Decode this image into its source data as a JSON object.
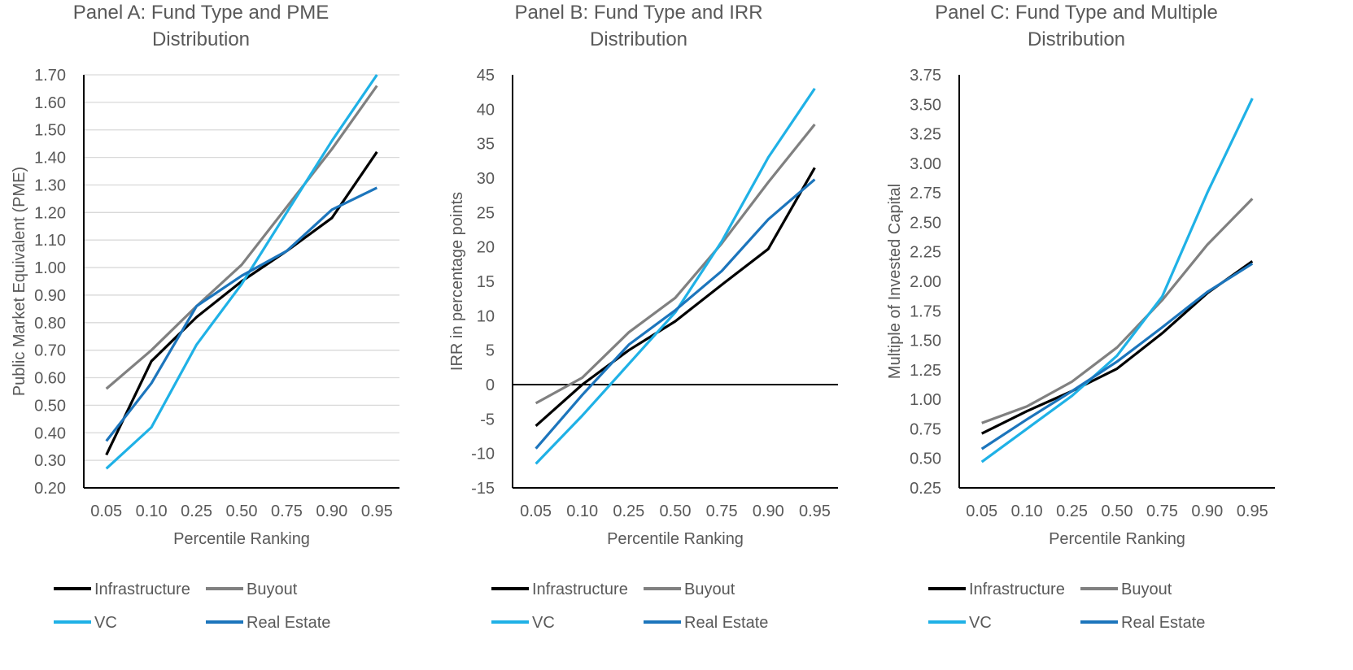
{
  "colors": {
    "Infrastructure": "#000000",
    "Buyout": "#808080",
    "VC": "#1FB1E6",
    "Real Estate": "#1C75BC",
    "grid": "#D9D9D9",
    "axis": "#000000"
  },
  "chart_data": [
    {
      "type": "line",
      "title": [
        "Panel A: Fund Type and PME",
        "Distribution"
      ],
      "xlabel": "Percentile Ranking",
      "ylabel": "Public Market Equivalent (PME)",
      "categories": [
        "0.05",
        "0.10",
        "0.25",
        "0.50",
        "0.75",
        "0.90",
        "0.95"
      ],
      "ylim": [
        0.2,
        1.7
      ],
      "ystep": 0.1,
      "ydecimals": 2,
      "grid": true,
      "legend": "bottom",
      "series": [
        {
          "name": "Infrastructure",
          "values": [
            0.32,
            0.66,
            0.82,
            0.95,
            1.06,
            1.18,
            1.42
          ]
        },
        {
          "name": "Buyout",
          "values": [
            0.56,
            0.7,
            0.86,
            1.01,
            1.22,
            1.43,
            1.66
          ]
        },
        {
          "name": "VC",
          "values": [
            0.27,
            0.42,
            0.72,
            0.94,
            1.2,
            1.46,
            1.7
          ]
        },
        {
          "name": "Real Estate",
          "values": [
            0.37,
            0.58,
            0.86,
            0.97,
            1.06,
            1.21,
            1.29
          ]
        }
      ]
    },
    {
      "type": "line",
      "title": [
        "Panel B: Fund Type and IRR",
        "Distribution"
      ],
      "xlabel": "Percentile Ranking",
      "ylabel": "IRR in percentage points",
      "categories": [
        "0.05",
        "0.10",
        "0.25",
        "0.50",
        "0.75",
        "0.90",
        "0.95"
      ],
      "ylim": [
        -15,
        45
      ],
      "ystep": 5,
      "ydecimals": 0,
      "grid": false,
      "zero_line": true,
      "legend": "bottom",
      "series": [
        {
          "name": "Infrastructure",
          "values": [
            -6.0,
            0.0,
            5.0,
            9.2,
            14.5,
            19.7,
            31.5
          ]
        },
        {
          "name": "Buyout",
          "values": [
            -2.7,
            1.0,
            7.6,
            12.6,
            20.5,
            29.4,
            37.8
          ]
        },
        {
          "name": "VC",
          "values": [
            -11.5,
            -4.5,
            3.0,
            10.5,
            20.8,
            33.0,
            43.0
          ]
        },
        {
          "name": "Real Estate",
          "values": [
            -9.3,
            -1.5,
            5.8,
            10.8,
            16.5,
            24.0,
            29.8
          ]
        }
      ]
    },
    {
      "type": "line",
      "title": [
        "Panel C: Fund Type and Multiple",
        "Distribution"
      ],
      "xlabel": "Percentile Ranking",
      "ylabel": "Multiple of Invested Capital",
      "categories": [
        "0.05",
        "0.10",
        "0.25",
        "0.50",
        "0.75",
        "0.90",
        "0.95"
      ],
      "ylim": [
        0.25,
        3.75
      ],
      "ystep": 0.25,
      "ydecimals": 2,
      "grid": false,
      "legend": "bottom",
      "series": [
        {
          "name": "Infrastructure",
          "values": [
            0.71,
            0.9,
            1.07,
            1.26,
            1.56,
            1.9,
            2.17
          ]
        },
        {
          "name": "Buyout",
          "values": [
            0.8,
            0.94,
            1.15,
            1.44,
            1.84,
            2.31,
            2.7
          ]
        },
        {
          "name": "VC",
          "values": [
            0.47,
            0.75,
            1.03,
            1.37,
            1.87,
            2.75,
            3.55
          ]
        },
        {
          "name": "Real Estate",
          "values": [
            0.58,
            0.83,
            1.07,
            1.32,
            1.61,
            1.91,
            2.15
          ]
        }
      ]
    }
  ]
}
